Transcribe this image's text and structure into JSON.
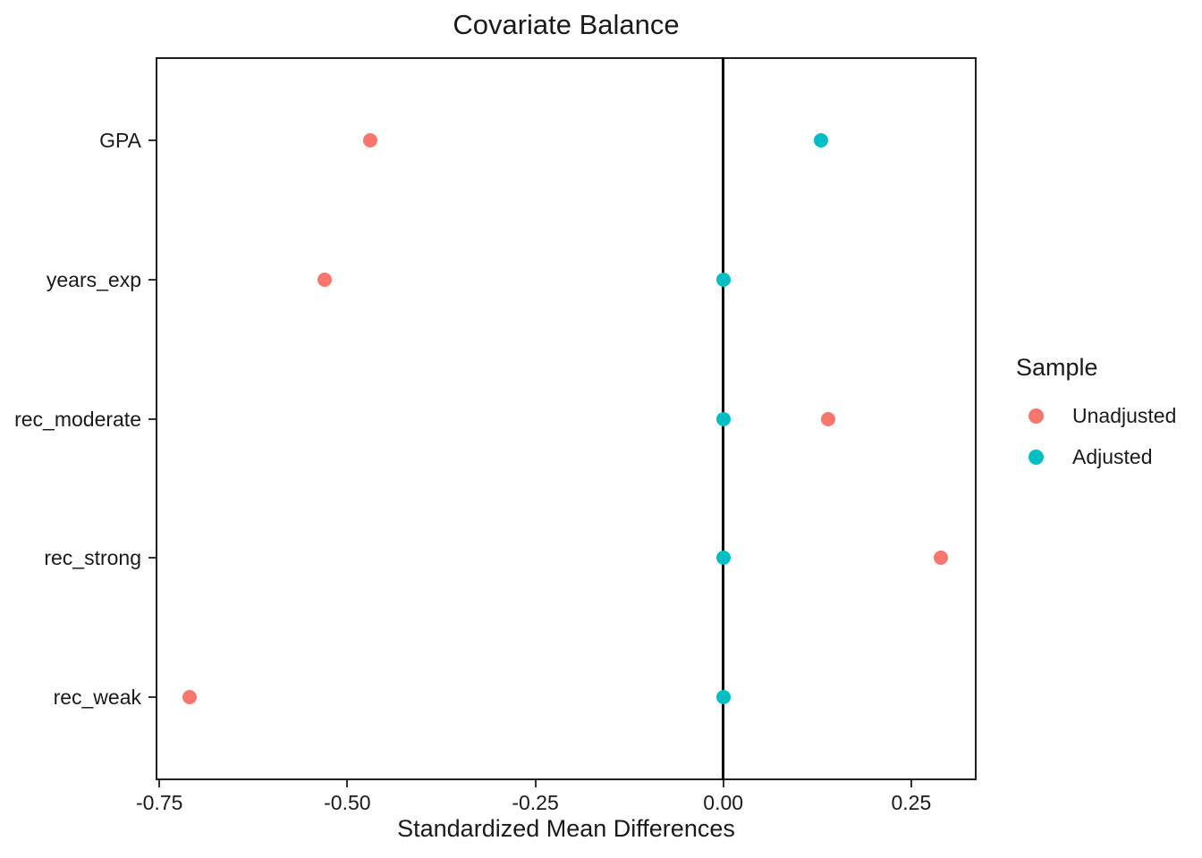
{
  "chart_data": {
    "type": "scatter",
    "title": "Covariate Balance",
    "xlabel": "Standardized Mean Differences",
    "ylabel": "",
    "categories": [
      "GPA",
      "years_exp",
      "rec_moderate",
      "rec_strong",
      "rec_weak"
    ],
    "x_ticks": [
      -0.75,
      -0.5,
      -0.25,
      0,
      0.25
    ],
    "x_tick_labels": [
      "-0.75",
      "-0.50",
      "-0.25",
      "0.00",
      "0.25"
    ],
    "xlim": [
      -0.755,
      0.337
    ],
    "reference_line_x": 0,
    "grid": "off",
    "legend": {
      "title": "Sample",
      "position": "right"
    },
    "series": [
      {
        "name": "Unadjusted",
        "color": "#F8766D",
        "values": [
          -0.47,
          -0.53,
          0.14,
          0.29,
          -0.71
        ]
      },
      {
        "name": "Adjusted",
        "color": "#00BFC4",
        "values": [
          0.13,
          0.0,
          0.0,
          0.0,
          0.0
        ]
      }
    ]
  }
}
